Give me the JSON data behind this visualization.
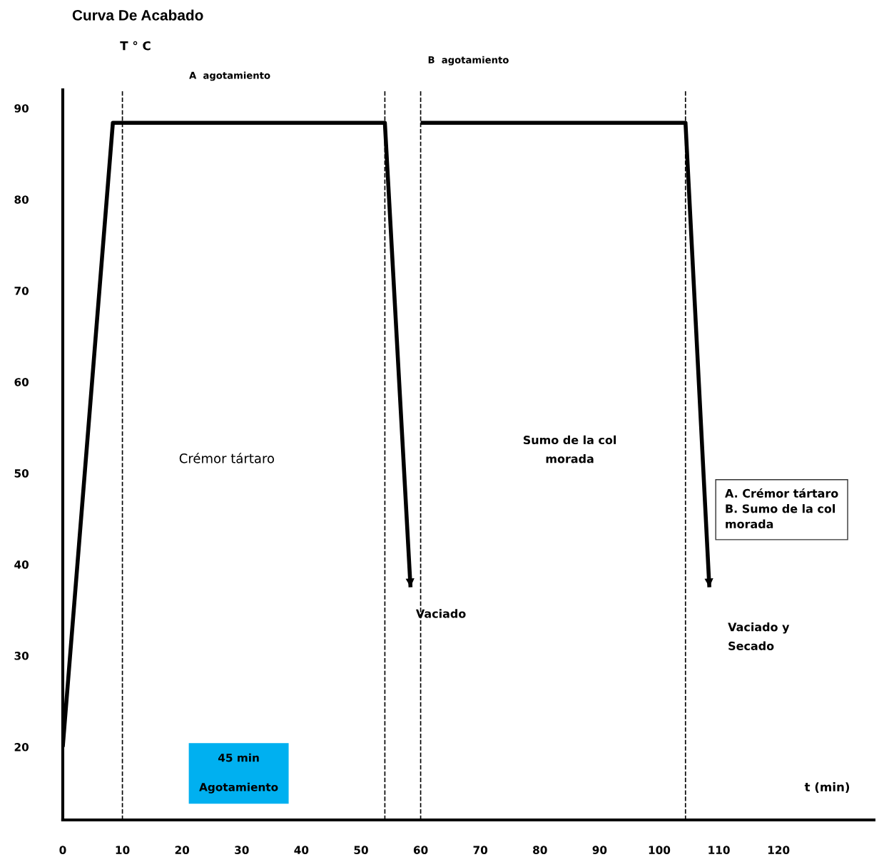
{
  "chart_data": {
    "type": "line",
    "title": "Curva De Acabado",
    "ylabel": "T ° C",
    "xlabel": "t (min)",
    "xlim": [
      0,
      136
    ],
    "ylim": [
      12,
      92
    ],
    "xticks": [
      0,
      10,
      20,
      30,
      40,
      50,
      60,
      70,
      80,
      90,
      100,
      110,
      120
    ],
    "yticks": [
      20,
      30,
      40,
      50,
      60,
      70,
      80,
      90
    ],
    "series": [
      {
        "color": "#000000",
        "x": [
          0,
          8.4,
          54,
          58.3
        ],
        "values": [
          20,
          88.4,
          88.4,
          37.5
        ]
      },
      {
        "color": "#000000",
        "x": [
          60,
          104.4,
          108.4
        ],
        "values": [
          88.4,
          88.4,
          37.5
        ]
      }
    ],
    "ref_lines": [
      {
        "axis": "x",
        "value": 10,
        "line_style": "dashed",
        "color": "#000000"
      },
      {
        "axis": "x",
        "value": 54,
        "line_style": "dashed",
        "color": "#000000"
      },
      {
        "axis": "x",
        "value": 60,
        "line_style": "dashed",
        "color": "#000000"
      },
      {
        "axis": "x",
        "value": 104.4,
        "line_style": "dashed",
        "color": "#000000"
      }
    ],
    "annotations": [
      "A  agotamiento",
      "B  agotamiento",
      "Crémor tártaro",
      "Sumo de la col\nmorada",
      "Vaciado",
      "Vaciado y\nSecado",
      "A. Crémor tártaro\nB. Sumo de la col\nmorada",
      "45 min\n\nAgotamiento"
    ],
    "marker": "none",
    "line_style": "solid",
    "grid": false,
    "legend": false
  }
}
